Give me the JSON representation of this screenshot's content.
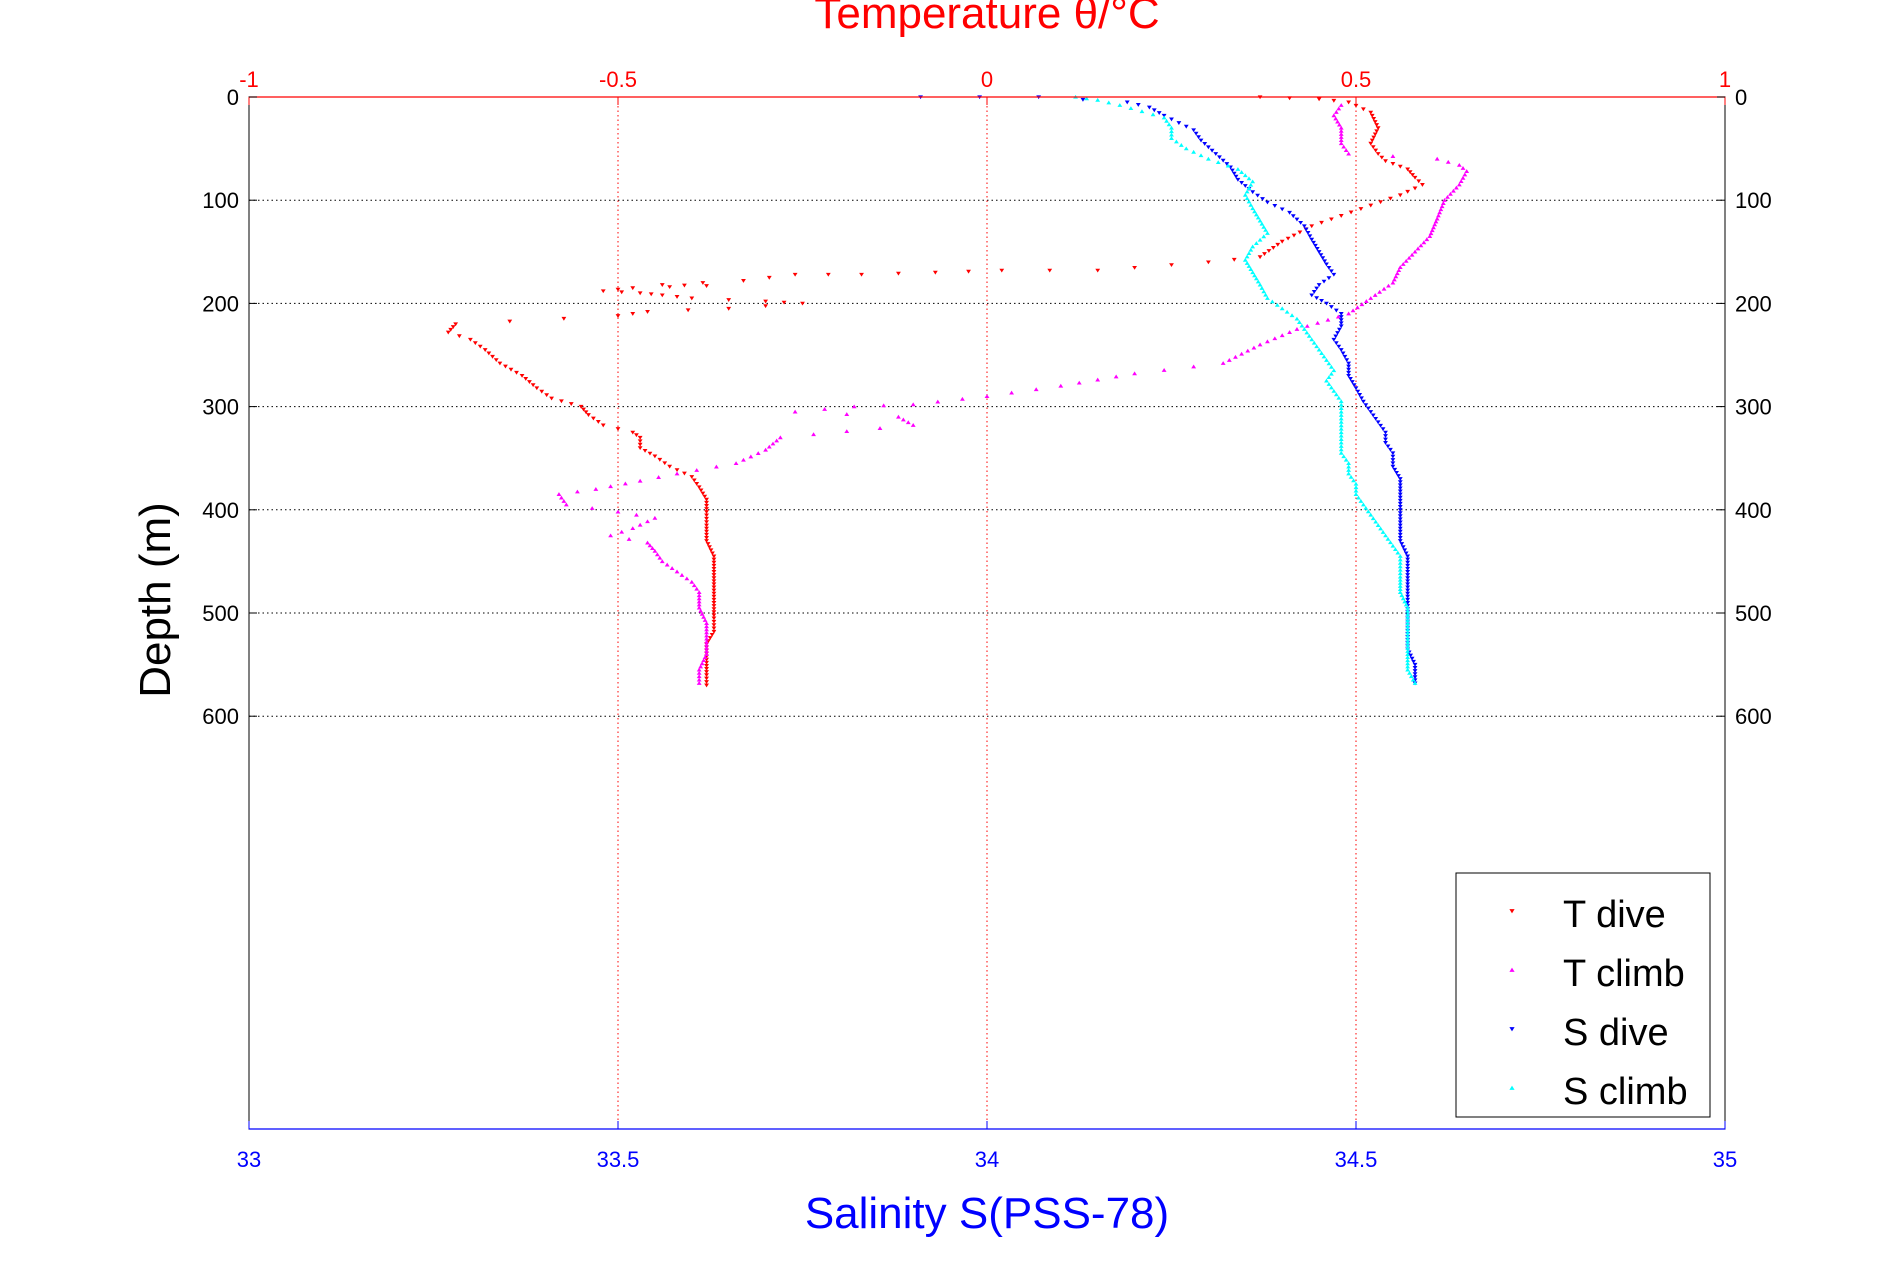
{
  "chart_data": {
    "type": "scatter",
    "title": "",
    "top_axis": {
      "label": "Temperature θ/°C",
      "range": [
        -1,
        1
      ],
      "ticks": [
        "-1",
        "-0.5",
        "0",
        "0.5",
        "1"
      ],
      "color": "#ff0000"
    },
    "bottom_axis": {
      "label": "Salinity S(PSS-78)",
      "range": [
        33,
        35
      ],
      "ticks": [
        "33",
        "33.5",
        "34",
        "34.5",
        "35"
      ],
      "color": "#0000ff"
    },
    "y_axis": {
      "label": "Depth (m)",
      "range": [
        0,
        1000
      ],
      "reversed": true,
      "ticks": [
        "0",
        "100",
        "200",
        "300",
        "400",
        "500",
        "600"
      ],
      "tick_values": [
        0,
        100,
        200,
        300,
        400,
        500,
        600
      ]
    },
    "grid": true,
    "legend_position": "bottom-right",
    "colors": {
      "t_dive": "#ff0000",
      "t_climb": "#ff00ff",
      "s_dive": "#0000ff",
      "s_climb": "#00ffff"
    },
    "series": [
      {
        "name": "T dive",
        "axis": "temperature",
        "marker": "triangle-down",
        "color": "#ff0000",
        "points": [
          [
            0.37,
            0
          ],
          [
            0.45,
            2
          ],
          [
            0.49,
            5
          ],
          [
            0.52,
            15
          ],
          [
            0.53,
            30
          ],
          [
            0.52,
            45
          ],
          [
            0.53,
            55
          ],
          [
            0.54,
            62
          ],
          [
            0.57,
            70
          ],
          [
            0.58,
            78
          ],
          [
            0.59,
            85
          ],
          [
            0.56,
            95
          ],
          [
            0.52,
            105
          ],
          [
            0.48,
            115
          ],
          [
            0.44,
            125
          ],
          [
            0.4,
            140
          ],
          [
            0.37,
            155
          ],
          [
            0.3,
            160
          ],
          [
            0.15,
            168
          ],
          [
            0.02,
            168
          ],
          [
            -0.07,
            170
          ],
          [
            -0.17,
            172
          ],
          [
            -0.26,
            172
          ],
          [
            -0.33,
            178
          ],
          [
            -0.44,
            182
          ],
          [
            -0.38,
            183
          ],
          [
            -0.48,
            185
          ],
          [
            -0.52,
            188
          ],
          [
            -0.47,
            190
          ],
          [
            -0.44,
            192
          ],
          [
            -0.4,
            195
          ],
          [
            -0.3,
            198
          ],
          [
            -0.25,
            200
          ],
          [
            -0.35,
            205
          ],
          [
            -0.46,
            208
          ],
          [
            -0.5,
            212
          ],
          [
            -0.72,
            220
          ],
          [
            -0.73,
            228
          ],
          [
            -0.7,
            235
          ],
          [
            -0.68,
            245
          ],
          [
            -0.66,
            258
          ],
          [
            -0.63,
            270
          ],
          [
            -0.61,
            282
          ],
          [
            -0.59,
            292
          ],
          [
            -0.55,
            300
          ],
          [
            -0.54,
            308
          ],
          [
            -0.52,
            318
          ],
          [
            -0.48,
            325
          ],
          [
            -0.47,
            330
          ],
          [
            -0.47,
            340
          ],
          [
            -0.45,
            348
          ],
          [
            -0.43,
            358
          ],
          [
            -0.4,
            368
          ],
          [
            -0.39,
            378
          ],
          [
            -0.38,
            390
          ],
          [
            -0.38,
            402
          ],
          [
            -0.38,
            415
          ],
          [
            -0.38,
            430
          ],
          [
            -0.37,
            445
          ],
          [
            -0.37,
            460
          ],
          [
            -0.37,
            475
          ],
          [
            -0.37,
            490
          ],
          [
            -0.37,
            505
          ],
          [
            -0.37,
            518
          ],
          [
            -0.38,
            530
          ],
          [
            -0.38,
            545
          ],
          [
            -0.38,
            560
          ],
          [
            -0.38,
            570
          ]
        ]
      },
      {
        "name": "T climb",
        "axis": "temperature",
        "marker": "triangle-up",
        "color": "#ff00ff",
        "points": [
          [
            0.48,
            8
          ],
          [
            0.47,
            18
          ],
          [
            0.48,
            30
          ],
          [
            0.48,
            45
          ],
          [
            0.49,
            55
          ],
          [
            0.61,
            60
          ],
          [
            0.64,
            66
          ],
          [
            0.65,
            72
          ],
          [
            0.64,
            85
          ],
          [
            0.62,
            100
          ],
          [
            0.61,
            118
          ],
          [
            0.6,
            135
          ],
          [
            0.58,
            150
          ],
          [
            0.56,
            165
          ],
          [
            0.55,
            180
          ],
          [
            0.52,
            195
          ],
          [
            0.49,
            210
          ],
          [
            0.42,
            225
          ],
          [
            0.37,
            240
          ],
          [
            0.32,
            258
          ],
          [
            0.2,
            268
          ],
          [
            0.1,
            280
          ],
          [
            0.0,
            290
          ],
          [
            -0.1,
            298
          ],
          [
            -0.18,
            300
          ],
          [
            -0.26,
            305
          ],
          [
            -0.12,
            310
          ],
          [
            -0.1,
            318
          ],
          [
            -0.28,
            330
          ],
          [
            -0.3,
            342
          ],
          [
            -0.34,
            355
          ],
          [
            -0.42,
            365
          ],
          [
            -0.47,
            372
          ],
          [
            -0.53,
            380
          ],
          [
            -0.58,
            385
          ],
          [
            -0.57,
            395
          ],
          [
            -0.5,
            402
          ],
          [
            -0.45,
            408
          ],
          [
            -0.48,
            418
          ],
          [
            -0.51,
            425
          ],
          [
            -0.46,
            432
          ],
          [
            -0.45,
            440
          ],
          [
            -0.44,
            450
          ],
          [
            -0.42,
            460
          ],
          [
            -0.4,
            470
          ],
          [
            -0.39,
            480
          ],
          [
            -0.39,
            495
          ],
          [
            -0.38,
            510
          ],
          [
            -0.38,
            525
          ],
          [
            -0.38,
            540
          ],
          [
            -0.39,
            555
          ],
          [
            -0.39,
            568
          ]
        ]
      },
      {
        "name": "S dive",
        "axis": "salinity",
        "marker": "triangle-down",
        "color": "#0000ff",
        "points": [
          [
            33.91,
            0
          ],
          [
            34.07,
            0
          ],
          [
            34.19,
            5
          ],
          [
            34.22,
            10
          ],
          [
            34.24,
            18
          ],
          [
            34.26,
            25
          ],
          [
            34.28,
            32
          ],
          [
            34.29,
            42
          ],
          [
            34.31,
            55
          ],
          [
            34.33,
            68
          ],
          [
            34.34,
            80
          ],
          [
            34.36,
            92
          ],
          [
            34.38,
            102
          ],
          [
            34.41,
            112
          ],
          [
            34.43,
            125
          ],
          [
            34.44,
            138
          ],
          [
            34.45,
            150
          ],
          [
            34.46,
            162
          ],
          [
            34.47,
            172
          ],
          [
            34.45,
            182
          ],
          [
            34.44,
            192
          ],
          [
            34.46,
            200
          ],
          [
            34.48,
            210
          ],
          [
            34.48,
            222
          ],
          [
            34.47,
            235
          ],
          [
            34.48,
            245
          ],
          [
            34.49,
            258
          ],
          [
            34.49,
            270
          ],
          [
            34.5,
            282
          ],
          [
            34.51,
            295
          ],
          [
            34.52,
            305
          ],
          [
            34.53,
            315
          ],
          [
            34.54,
            325
          ],
          [
            34.54,
            335
          ],
          [
            34.55,
            345
          ],
          [
            34.55,
            358
          ],
          [
            34.56,
            370
          ],
          [
            34.56,
            385
          ],
          [
            34.56,
            400
          ],
          [
            34.56,
            415
          ],
          [
            34.56,
            430
          ],
          [
            34.57,
            445
          ],
          [
            34.57,
            460
          ],
          [
            34.57,
            475
          ],
          [
            34.57,
            490
          ],
          [
            34.57,
            505
          ],
          [
            34.57,
            520
          ],
          [
            34.57,
            535
          ],
          [
            34.58,
            550
          ],
          [
            34.58,
            568
          ]
        ]
      },
      {
        "name": "S climb",
        "axis": "salinity",
        "marker": "triangle-up",
        "color": "#00ffff",
        "points": [
          [
            34.12,
            0
          ],
          [
            34.15,
            3
          ],
          [
            34.18,
            8
          ],
          [
            34.21,
            14
          ],
          [
            34.24,
            20
          ],
          [
            34.25,
            30
          ],
          [
            34.25,
            40
          ],
          [
            34.27,
            50
          ],
          [
            34.3,
            60
          ],
          [
            34.34,
            70
          ],
          [
            34.36,
            82
          ],
          [
            34.35,
            95
          ],
          [
            34.36,
            108
          ],
          [
            34.37,
            120
          ],
          [
            34.38,
            132
          ],
          [
            34.36,
            145
          ],
          [
            34.35,
            158
          ],
          [
            34.36,
            170
          ],
          [
            34.37,
            182
          ],
          [
            34.38,
            195
          ],
          [
            34.4,
            205
          ],
          [
            34.42,
            215
          ],
          [
            34.43,
            225
          ],
          [
            34.44,
            235
          ],
          [
            34.45,
            245
          ],
          [
            34.46,
            255
          ],
          [
            34.47,
            265
          ],
          [
            34.46,
            275
          ],
          [
            34.47,
            285
          ],
          [
            34.48,
            295
          ],
          [
            34.48,
            305
          ],
          [
            34.48,
            315
          ],
          [
            34.48,
            325
          ],
          [
            34.48,
            335
          ],
          [
            34.48,
            345
          ],
          [
            34.49,
            355
          ],
          [
            34.49,
            365
          ],
          [
            34.5,
            375
          ],
          [
            34.5,
            385
          ],
          [
            34.51,
            395
          ],
          [
            34.52,
            405
          ],
          [
            34.53,
            415
          ],
          [
            34.54,
            425
          ],
          [
            34.55,
            435
          ],
          [
            34.56,
            445
          ],
          [
            34.56,
            455
          ],
          [
            34.56,
            465
          ],
          [
            34.56,
            480
          ],
          [
            34.57,
            495
          ],
          [
            34.57,
            510
          ],
          [
            34.57,
            525
          ],
          [
            34.57,
            540
          ],
          [
            34.57,
            555
          ],
          [
            34.58,
            568
          ]
        ]
      }
    ]
  }
}
